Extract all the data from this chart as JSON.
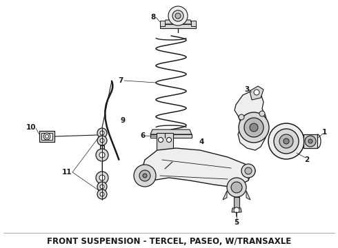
{
  "title": "FRONT SUSPENSION - TERCEL, PASEO, W/TRANSAXLE",
  "title_fontsize": 8.5,
  "title_fontweight": "bold",
  "bg_color": "#ffffff",
  "line_color": "#1a1a1a",
  "figsize": [
    4.9,
    3.6
  ],
  "dpi": 100,
  "gray_fill": "#d8d8d8",
  "gray_mid": "#b8b8b8",
  "gray_dark": "#888888",
  "gray_light": "#eeeeee"
}
